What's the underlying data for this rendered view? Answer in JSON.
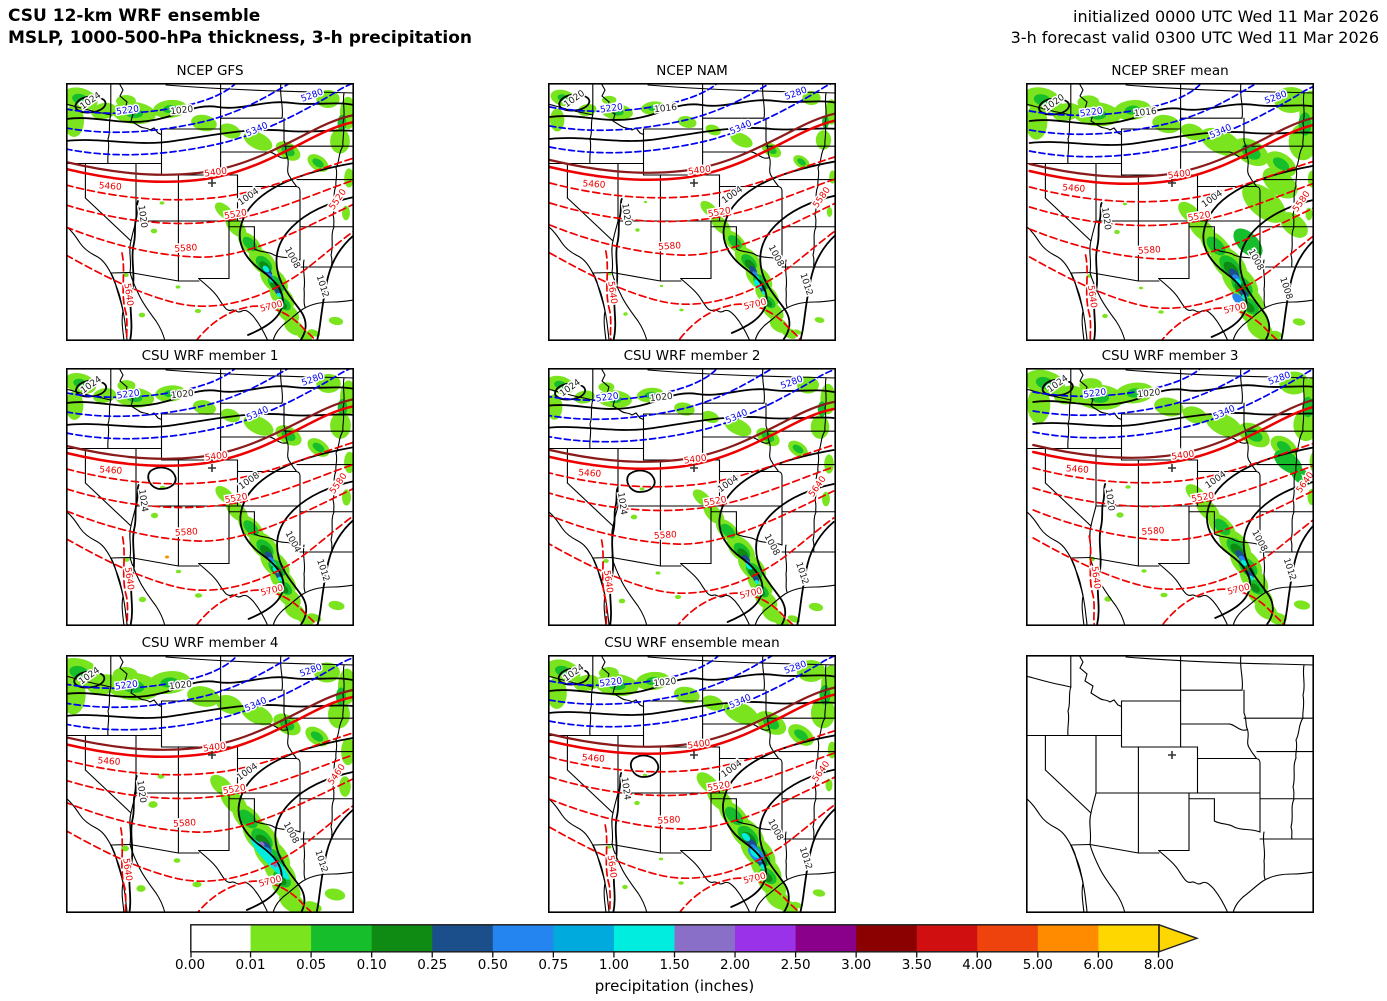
{
  "header": {
    "title_line1": "CSU 12-km WRF ensemble",
    "title_line2": "MSLP, 1000-500-hPa thickness, 3-h precipitation",
    "init_line": "initialized 0000 UTC Wed 11 Mar 2026",
    "valid_line": "3-h forecast valid 0300 UTC Wed 11 Mar 2026"
  },
  "panels": [
    {
      "title": "NCEP GFS",
      "has_data": true,
      "labels": {
        "mslp": [
          "1024",
          "1020",
          "1020",
          "1004",
          "1012",
          "1008"
        ],
        "thickness_blue": [
          "5220",
          "5280",
          "5340"
        ],
        "thickness_red": [
          "5400",
          "5460",
          "5520",
          "5580",
          "5640",
          "5700",
          "5520"
        ]
      }
    },
    {
      "title": "NCEP NAM",
      "has_data": true,
      "labels": {
        "mslp": [
          "1020",
          "1016",
          "1020",
          "1004",
          "1012",
          "1008"
        ],
        "thickness_blue": [
          "5220",
          "5280",
          "5340"
        ],
        "thickness_red": [
          "5400",
          "5460",
          "5520",
          "5580",
          "5640",
          "5700",
          "5580"
        ]
      }
    },
    {
      "title": "NCEP SREF mean",
      "has_data": true,
      "labels": {
        "mslp": [
          "1020",
          "1016",
          "1020",
          "1004",
          "1008",
          "1008"
        ],
        "thickness_blue": [
          "5220",
          "5280",
          "5340"
        ],
        "thickness_red": [
          "5400",
          "5460",
          "5520",
          "5580",
          "5640",
          "5700",
          "5580"
        ]
      }
    },
    {
      "title": "CSU WRF member 1",
      "has_data": true,
      "labels": {
        "mslp": [
          "1024",
          "1020",
          "1024",
          "1008",
          "1012",
          "1004"
        ],
        "thickness_blue": [
          "5220",
          "5280",
          "5340"
        ],
        "thickness_red": [
          "5400",
          "5460",
          "5520",
          "5580",
          "5640",
          "5700",
          "5580"
        ]
      }
    },
    {
      "title": "CSU WRF member 2",
      "has_data": true,
      "labels": {
        "mslp": [
          "1024",
          "1020",
          "1024",
          "1004",
          "1012",
          "1008"
        ],
        "thickness_blue": [
          "5220",
          "5280",
          "5340"
        ],
        "thickness_red": [
          "5400",
          "5460",
          "5520",
          "5580",
          "5640",
          "5700",
          "5640"
        ]
      }
    },
    {
      "title": "CSU WRF member 3",
      "has_data": true,
      "labels": {
        "mslp": [
          "1024",
          "1020",
          "1020",
          "1004",
          "1012",
          "1008"
        ],
        "thickness_blue": [
          "5220",
          "5280",
          "5340"
        ],
        "thickness_red": [
          "5400",
          "5460",
          "5520",
          "5580",
          "5640",
          "5700",
          "5640"
        ]
      }
    },
    {
      "title": "CSU WRF member 4",
      "has_data": true,
      "labels": {
        "mslp": [
          "1024",
          "1020",
          "1020",
          "1004",
          "1012",
          "1008"
        ],
        "thickness_blue": [
          "5220",
          "5280",
          "5340"
        ],
        "thickness_red": [
          "5400",
          "5460",
          "5520",
          "5580",
          "5640",
          "5700",
          "5460"
        ]
      }
    },
    {
      "title": "CSU WRF ensemble mean",
      "has_data": true,
      "labels": {
        "mslp": [
          "1024",
          "1020",
          "1024",
          "1004",
          "1012",
          "1008"
        ],
        "thickness_blue": [
          "5220",
          "5280",
          "5340"
        ],
        "thickness_red": [
          "5400",
          "5460",
          "5520",
          "5580",
          "5640",
          "5700",
          "5640"
        ]
      }
    },
    {
      "title": "",
      "has_data": false,
      "labels": {
        "mslp": [],
        "thickness_blue": [],
        "thickness_red": []
      }
    }
  ],
  "colorbar": {
    "label": "precipitation (inches)",
    "tick_labels": [
      "0.00",
      "0.01",
      "0.05",
      "0.10",
      "0.25",
      "0.50",
      "0.75",
      "1.00",
      "1.50",
      "2.00",
      "2.50",
      "3.00",
      "3.50",
      "4.00",
      "5.00",
      "6.00",
      "8.00"
    ],
    "colors": [
      "#FFFFFF",
      "#7AE51F",
      "#17BE2B",
      "#0F8A12",
      "#1B4F8C",
      "#2585F0",
      "#00AADC",
      "#00EDE0",
      "#8A6FC8",
      "#9932E8",
      "#8B008B",
      "#8B0000",
      "#D01010",
      "#EF430E",
      "#FF8C00",
      "#FFD700"
    ],
    "arrow_color": "#FFD700"
  },
  "chart_data": {
    "type": "heatmap",
    "subtype": "multi-panel weather map ensemble (filled precipitation + contour overlays)",
    "title": "CSU 12-km WRF ensemble — MSLP, 1000-500-hPa thickness, 3-h precipitation",
    "initialized": "0000 UTC Wed 11 Mar 2026",
    "valid": "0300 UTC Wed 11 Mar 2026",
    "forecast_hour_label": "3-h forecast",
    "region": "Western and Central United States with northern Mexico",
    "station_marker": "+",
    "panels": [
      "NCEP GFS",
      "NCEP NAM",
      "NCEP SREF mean",
      "CSU WRF member 1",
      "CSU WRF member 2",
      "CSU WRF member 3",
      "CSU WRF member 4",
      "CSU WRF ensemble mean"
    ],
    "empty_panel": "bottom-right panel shows base map only",
    "fields": [
      {
        "name": "MSLP",
        "units": "hPa",
        "style": "solid black contours",
        "line_color": "#000000",
        "levels_visible": [
          1004,
          1008,
          1012,
          1016,
          1020,
          1024
        ]
      },
      {
        "name": "1000-500-hPa thickness",
        "units": "m",
        "style": "dashed blue below 5400, solid red 5400 line, dashed red above 5400",
        "blue_color": "#0000F0",
        "red_color": "#EE0000",
        "aux_dark_red_line": "#8B1A1A",
        "levels_visible": [
          5220,
          5280,
          5340,
          5400,
          5460,
          5520,
          5580,
          5640,
          5700
        ]
      },
      {
        "name": "3-h precipitation",
        "units": "inches",
        "style": "filled shading",
        "levels": [
          0.0,
          0.01,
          0.05,
          0.1,
          0.25,
          0.5,
          0.75,
          1.0,
          1.5,
          2.0,
          2.5,
          3.0,
          3.5,
          4.0,
          5.0,
          6.0,
          8.0
        ]
      }
    ],
    "pattern_summary": "Light-to-moderate precipitation band across Montana/Dakotas; SW-NE band of heavier precipitation (0.25-2.00 in cores) from eastern New Mexico/Colorado across Oklahoma into central Texas; thickness trough over the Southwest"
  }
}
